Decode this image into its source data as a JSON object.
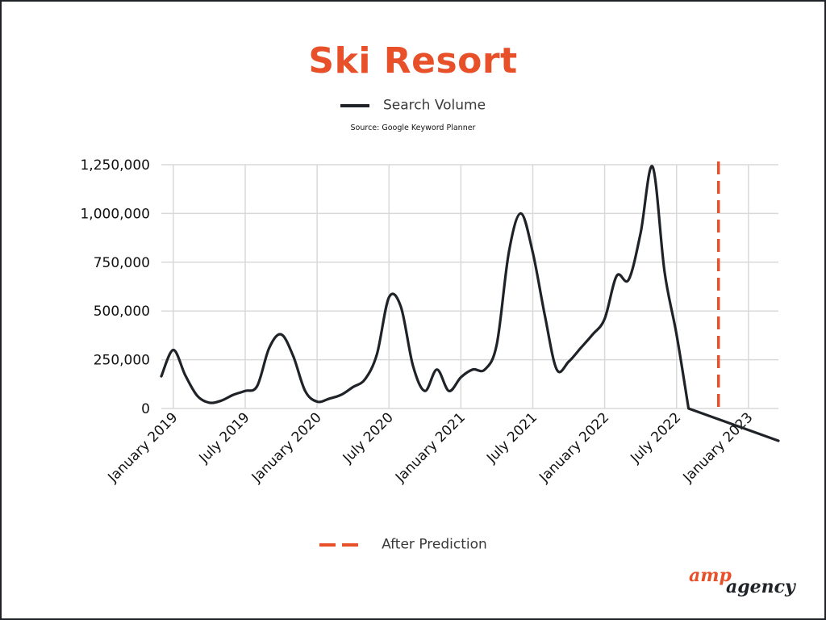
{
  "title": "Ski Resort",
  "legend": {
    "series_label": "Search Volume",
    "prediction_label": "After Prediction"
  },
  "source": "Source: Google Keyword Planner",
  "logo": {
    "part1": "amp",
    "part2": "agency"
  },
  "colors": {
    "accent": "#e8502a",
    "line": "#1f2328",
    "grid": "#d9d9d9"
  },
  "chart_data": {
    "type": "line",
    "title": "Ski Resort",
    "xlabel": "",
    "ylabel": "",
    "ylim": [
      0,
      1250000
    ],
    "yticks": [
      0,
      250000,
      500000,
      750000,
      1000000,
      1250000
    ],
    "ytick_labels": [
      "0",
      "250,000",
      "500,000",
      "750,000",
      "1,000,000",
      "1,250,000"
    ],
    "xtick_labels": [
      "January 2019",
      "July 2019",
      "January 2020",
      "July 2020",
      "January 2021",
      "July 2021",
      "January 2022",
      "July 2022",
      "January 2023"
    ],
    "grid": true,
    "prediction_marker": {
      "label": "After Prediction",
      "x_month": 45.5
    },
    "series": [
      {
        "name": "Search Volume",
        "x_month": [
          -1,
          0,
          1,
          2,
          3,
          4,
          5,
          6,
          7,
          8,
          9,
          10,
          11,
          12,
          13,
          14,
          15,
          16,
          17,
          18,
          19,
          20,
          21,
          22,
          23,
          24,
          25,
          26,
          27,
          28,
          29,
          30,
          31,
          32,
          33,
          34,
          35,
          36,
          37,
          38,
          39,
          40,
          41,
          42,
          43,
          44,
          45,
          46,
          47,
          48,
          49,
          50,
          50.5
        ],
        "values": [
          165000,
          300000,
          170000,
          65000,
          30000,
          40000,
          70000,
          90000,
          115000,
          310000,
          380000,
          270000,
          90000,
          35000,
          50000,
          70000,
          110000,
          150000,
          280000,
          570000,
          520000,
          220000,
          90000,
          200000,
          90000,
          160000,
          200000,
          200000,
          330000,
          800000,
          1000000,
          800000,
          480000,
          200000,
          240000,
          310000,
          380000,
          460000,
          680000,
          660000,
          900000,
          1240000,
          700000,
          380000,
          0,
          0,
          0,
          0,
          0,
          0,
          0,
          0,
          0
        ]
      }
    ]
  }
}
